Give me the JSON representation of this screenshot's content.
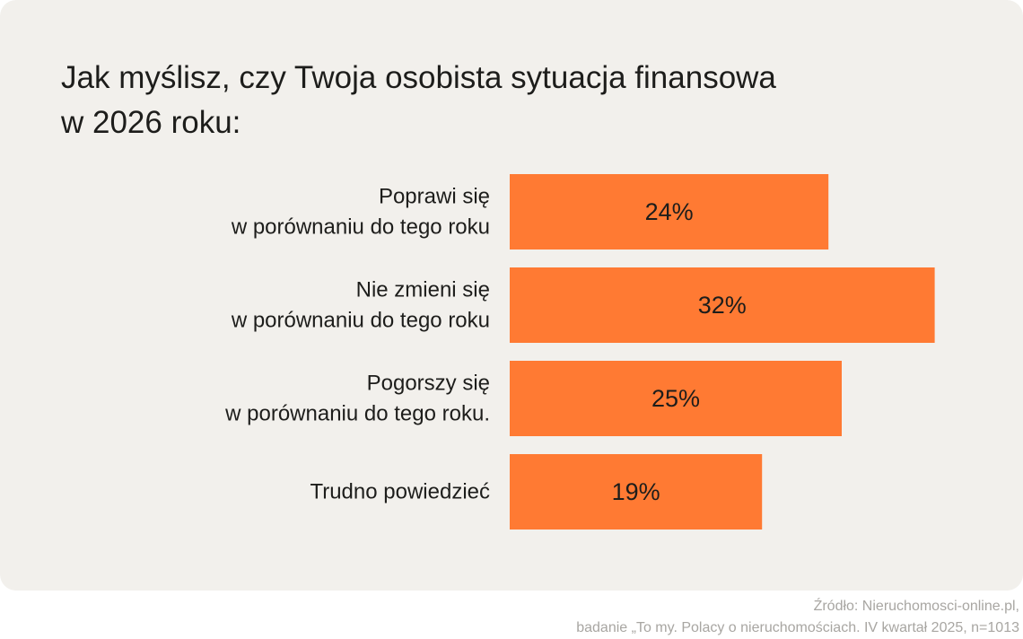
{
  "title_lines": [
    "Jak myślisz, czy Twoja osobista sytuacja finansowa",
    "w 2026 roku:"
  ],
  "chart_data": {
    "type": "bar",
    "orientation": "horizontal",
    "categories": [
      [
        "Poprawi się",
        "w porównaniu do tego roku"
      ],
      [
        "Nie zmieni się",
        "w porównaniu do tego roku"
      ],
      [
        "Pogorszy się",
        "w porównaniu do tego roku."
      ],
      [
        "Trudno powiedzieć"
      ]
    ],
    "values": [
      24,
      32,
      25,
      19
    ],
    "value_labels": [
      "24%",
      "32%",
      "25%",
      "19%"
    ],
    "unit": "%",
    "bar_color": "#ff7a33",
    "grid": false,
    "legend": "none"
  },
  "source_lines": [
    "Źródło: Nieruchomosci-online.pl,",
    "badanie „To my. Polacy o nieruchomościach. IV kwartał 2025, n=1013"
  ],
  "colors": {
    "background": "#f2f0ec",
    "text": "#1d1d1b",
    "source_text": "#a8a6a2",
    "bar": "#ff7a33"
  }
}
